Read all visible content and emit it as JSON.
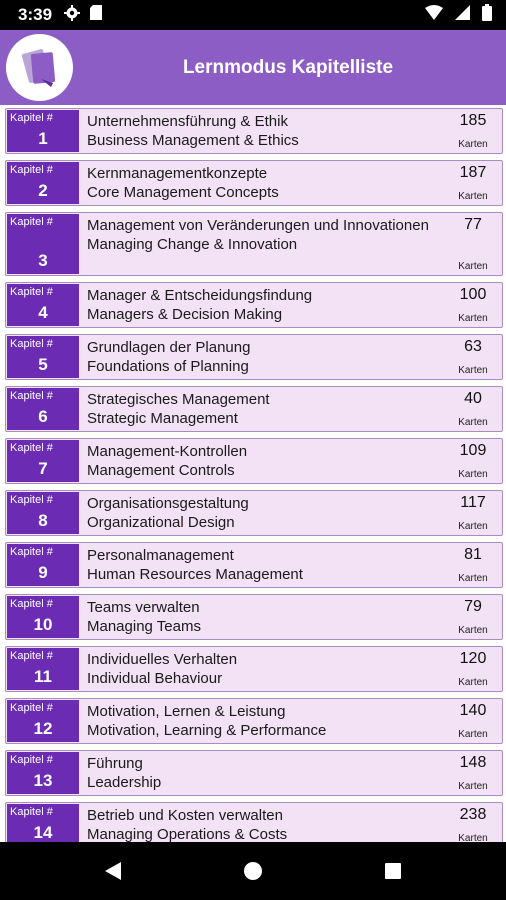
{
  "status": {
    "time": "3:39"
  },
  "header": {
    "title": "Lernmodus Kapitelliste"
  },
  "chapter_label": "Kapitel #",
  "count_unit": "Karten",
  "chapters": [
    {
      "num": "1",
      "de": "Unternehmensführung & Ethik",
      "en": "Business Management & Ethics",
      "count": "185"
    },
    {
      "num": "2",
      "de": "Kernmanagementkonzepte",
      "en": "Core Management Concepts",
      "count": "187"
    },
    {
      "num": "3",
      "de": "Management von Veränderungen und Innovationen",
      "en": "Managing Change & Innovation",
      "count": "77"
    },
    {
      "num": "4",
      "de": "Manager & Entscheidungsfindung",
      "en": "Managers & Decision Making",
      "count": "100"
    },
    {
      "num": "5",
      "de": "Grundlagen der Planung",
      "en": "Foundations of Planning",
      "count": "63"
    },
    {
      "num": "6",
      "de": "Strategisches Management",
      "en": "Strategic Management",
      "count": "40"
    },
    {
      "num": "7",
      "de": "Management-Kontrollen",
      "en": "Management Controls",
      "count": "109"
    },
    {
      "num": "8",
      "de": "Organisationsgestaltung",
      "en": "Organizational Design",
      "count": "117"
    },
    {
      "num": "9",
      "de": "Personalmanagement",
      "en": "Human Resources Management",
      "count": "81"
    },
    {
      "num": "10",
      "de": "Teams verwalten",
      "en": "Managing Teams",
      "count": "79"
    },
    {
      "num": "11",
      "de": "Individuelles Verhalten",
      "en": "Individual Behaviour",
      "count": "120"
    },
    {
      "num": "12",
      "de": "Motivation, Lernen & Leistung",
      "en": "Motivation, Learning & Performance",
      "count": "140"
    },
    {
      "num": "13",
      "de": "Führung",
      "en": "Leadership",
      "count": "148"
    },
    {
      "num": "14",
      "de": "Betrieb und Kosten verwalten",
      "en": "Managing Operations & Costs",
      "count": "238"
    }
  ]
}
